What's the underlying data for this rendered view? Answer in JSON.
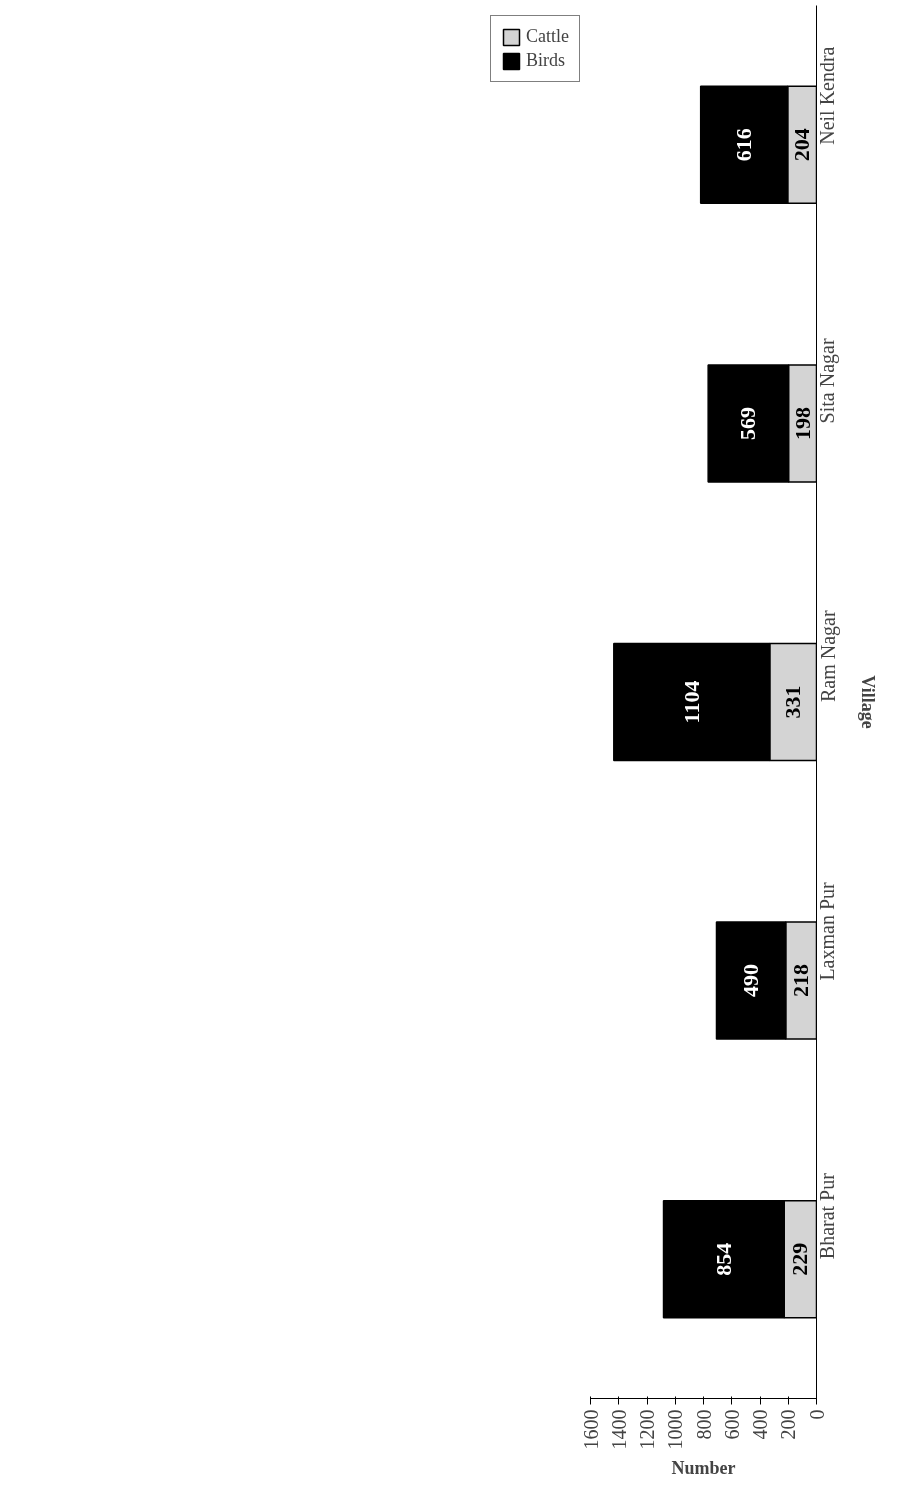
{
  "chart_data": {
    "type": "bar",
    "orientation": "horizontal",
    "stacked": true,
    "xlabel": "Number",
    "ylabel": "Village",
    "categories": [
      "Neil Kendra",
      "Sita Nagar",
      "Ram Nagar",
      "Laxman Pur",
      "Bharat Pur"
    ],
    "series": [
      {
        "name": "Cattle",
        "color": "#d4d4d4",
        "values": [
          204,
          198,
          331,
          218,
          229
        ]
      },
      {
        "name": "Birds",
        "color": "#000000",
        "values": [
          616,
          569,
          1104,
          490,
          854
        ]
      }
    ],
    "xlim": [
      1600,
      0
    ],
    "xticks": [
      0,
      200,
      400,
      600,
      800,
      1000,
      1200,
      1400,
      1600
    ],
    "data_labels": true,
    "legend": "left",
    "grid": false
  }
}
